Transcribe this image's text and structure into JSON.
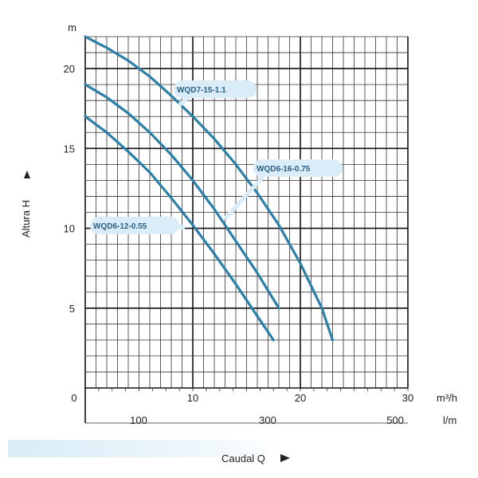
{
  "chart_data": {
    "type": "line",
    "xlabel": "Caudal Q",
    "ylabel": "Altura H",
    "x_unit": "m³/h",
    "x2_unit": "l/m",
    "y_unit": "m",
    "xlim": [
      0,
      30
    ],
    "ylim": [
      0,
      22
    ],
    "x_ticks": [
      "0",
      "10",
      "20",
      "30"
    ],
    "x2_ticks": [
      "100",
      "300",
      "500"
    ],
    "y_ticks": [
      "5",
      "10",
      "15",
      "20"
    ],
    "grid": true,
    "series": [
      {
        "name": "WQD7-15-1.1",
        "x": [
          0,
          2,
          4,
          6,
          8,
          10,
          12,
          14,
          16,
          18,
          20,
          22,
          23
        ],
        "y": [
          22,
          21.3,
          20.5,
          19.5,
          18.3,
          17.0,
          15.6,
          14.0,
          12.2,
          10.2,
          7.8,
          5.0,
          3.0
        ],
        "color": "#2c7fa8"
      },
      {
        "name": "WQD6-16-0.75",
        "x": [
          0,
          2,
          4,
          6,
          8,
          10,
          12,
          14,
          16,
          18
        ],
        "y": [
          19,
          18.2,
          17.2,
          16.0,
          14.6,
          13.0,
          11.2,
          9.2,
          7.2,
          5.0
        ],
        "color": "#2c7fa8"
      },
      {
        "name": "WQD6-12-0.55",
        "x": [
          0,
          2,
          4,
          6,
          8,
          10,
          12,
          14,
          16,
          17.5
        ],
        "y": [
          17,
          16.0,
          14.8,
          13.5,
          11.9,
          10.2,
          8.4,
          6.5,
          4.5,
          3.0
        ],
        "color": "#2c7fa8"
      }
    ],
    "annotations": [
      "WQD7-15-1.1",
      "WQD6-16-0.75",
      "WQD6-12-0.55"
    ]
  },
  "colors": {
    "curve": "#2c7fa8",
    "callout_bg": "#d9ecf7",
    "callout_text": "#2a5f86",
    "grid": "#222222"
  }
}
